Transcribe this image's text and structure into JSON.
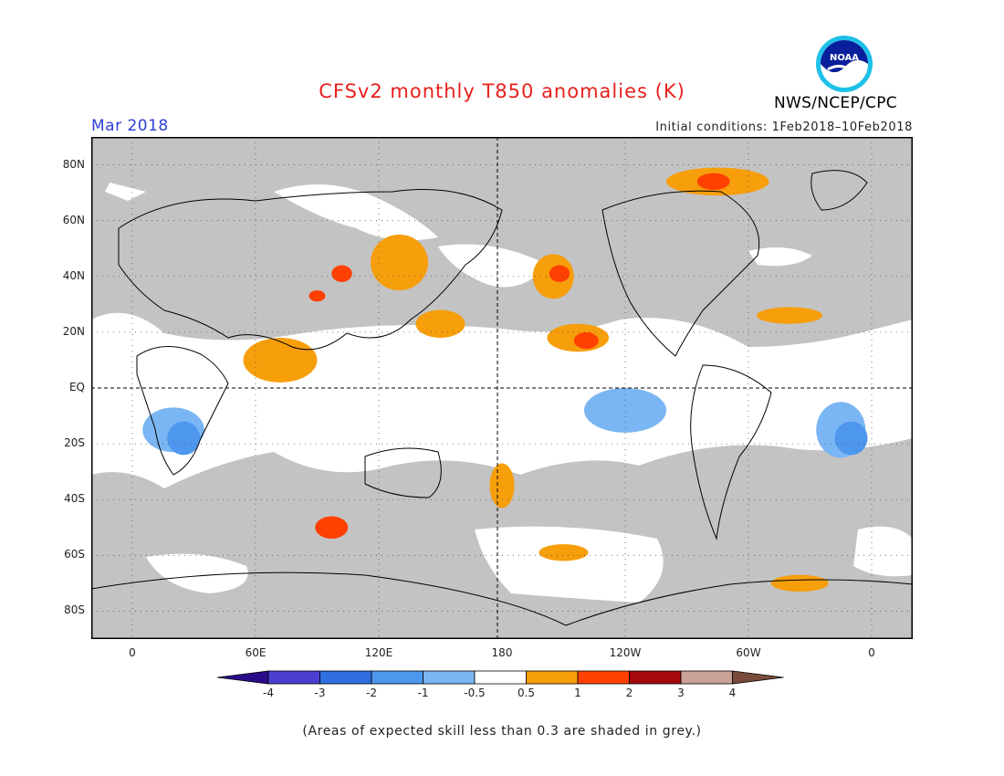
{
  "header": {
    "title": "CFSv2 monthly T850 anomalies (K)",
    "month": "Mar 2018",
    "initial_conditions": "Initial conditions: 1Feb2018–10Feb2018",
    "agency": "NWS/NCEP/CPC",
    "logo_text": "NOAA"
  },
  "axes": {
    "lat_labels": [
      "80N",
      "60N",
      "40N",
      "20N",
      "EQ",
      "20S",
      "40S",
      "60S",
      "80S"
    ],
    "lat_values": [
      80,
      60,
      40,
      20,
      0,
      -20,
      -40,
      -60,
      -80
    ],
    "lon_labels": [
      "0",
      "60E",
      "120E",
      "180",
      "120W",
      "60W",
      "0"
    ],
    "lon_values": [
      0,
      60,
      120,
      180,
      240,
      300,
      360
    ],
    "lon_range": [
      -20,
      380
    ],
    "lat_range": [
      -90,
      90
    ]
  },
  "colorbar": {
    "labels": [
      "-4",
      "-3",
      "-2",
      "-1",
      "-0.5",
      "0.5",
      "1",
      "2",
      "3",
      "4"
    ],
    "colors": [
      "#2a0c8a",
      "#4b3fd1",
      "#2f6fe0",
      "#4d97ee",
      "#7ab6f3",
      "#ffffff",
      "#f79e0b",
      "#ff4000",
      "#a50a0a",
      "#c9a195",
      "#7a4a3a"
    ]
  },
  "footnote": "(Areas of expected skill less than 0.3 are shaded in grey.)",
  "map_data": {
    "skill_grey_color": "#c3c3c3",
    "anomaly_regions": [
      {
        "level": "0.5-1",
        "color": "#f79e0b",
        "center": [
          72,
          10
        ],
        "extent_deg": [
          18,
          8
        ]
      },
      {
        "level": "0.5-1",
        "color": "#f79e0b",
        "center": [
          130,
          45
        ],
        "extent_deg": [
          14,
          10
        ]
      },
      {
        "level": "1-2",
        "color": "#ff4000",
        "center": [
          102,
          41
        ],
        "extent_deg": [
          5,
          3
        ]
      },
      {
        "level": "1-2",
        "color": "#ff4000",
        "center": [
          90,
          33
        ],
        "extent_deg": [
          4,
          2
        ]
      },
      {
        "level": "0.5-1",
        "color": "#f79e0b",
        "center": [
          150,
          23
        ],
        "extent_deg": [
          12,
          5
        ]
      },
      {
        "level": "0.5-1",
        "color": "#f79e0b",
        "center": [
          205,
          40
        ],
        "extent_deg": [
          10,
          8
        ]
      },
      {
        "level": "1-2",
        "color": "#ff4000",
        "center": [
          208,
          41
        ],
        "extent_deg": [
          5,
          3
        ]
      },
      {
        "level": "0.5-1",
        "color": "#f79e0b",
        "center": [
          217,
          18
        ],
        "extent_deg": [
          15,
          5
        ]
      },
      {
        "level": "1-2",
        "color": "#ff4000",
        "center": [
          221,
          17
        ],
        "extent_deg": [
          6,
          3
        ]
      },
      {
        "level": "0.5-1",
        "color": "#f79e0b",
        "center": [
          285,
          74
        ],
        "extent_deg": [
          25,
          5
        ]
      },
      {
        "level": "1-2",
        "color": "#ff4000",
        "center": [
          283,
          74
        ],
        "extent_deg": [
          8,
          3
        ]
      },
      {
        "level": "0.5-1",
        "color": "#f79e0b",
        "center": [
          320,
          26
        ],
        "extent_deg": [
          16,
          3
        ]
      },
      {
        "level": "0.5-1",
        "color": "#f79e0b",
        "center": [
          180,
          -35
        ],
        "extent_deg": [
          6,
          8
        ]
      },
      {
        "level": "1-2",
        "color": "#ff4000",
        "center": [
          97,
          -50
        ],
        "extent_deg": [
          8,
          4
        ]
      },
      {
        "level": "0.5-1",
        "color": "#f79e0b",
        "center": [
          325,
          -70
        ],
        "extent_deg": [
          14,
          3
        ]
      },
      {
        "level": "0.5-1",
        "color": "#f79e0b",
        "center": [
          210,
          -59
        ],
        "extent_deg": [
          12,
          3
        ]
      },
      {
        "level": "-0.5 to -1",
        "color": "#7ab6f3",
        "center": [
          20,
          -15
        ],
        "extent_deg": [
          15,
          8
        ]
      },
      {
        "level": "-1 to -2",
        "color": "#4d97ee",
        "center": [
          25,
          -18
        ],
        "extent_deg": [
          8,
          6
        ]
      },
      {
        "level": "-0.5 to -1",
        "color": "#7ab6f3",
        "center": [
          240,
          -8
        ],
        "extent_deg": [
          20,
          8
        ]
      },
      {
        "level": "-0.5 to -1",
        "color": "#7ab6f3",
        "center": [
          345,
          -15
        ],
        "extent_deg": [
          12,
          10
        ]
      },
      {
        "level": "-1 to -2",
        "color": "#4d97ee",
        "center": [
          350,
          -18
        ],
        "extent_deg": [
          8,
          6
        ]
      }
    ]
  }
}
